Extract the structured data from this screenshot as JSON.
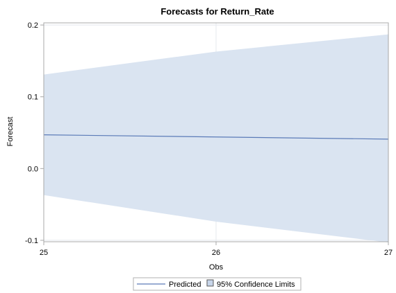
{
  "chart_data": {
    "type": "area",
    "title": "Forecasts for Return_Rate",
    "xlabel": "Obs",
    "ylabel": "Forecast",
    "x": [
      25,
      26,
      27
    ],
    "x_ticks": [
      "25",
      "26",
      "27"
    ],
    "y_ticks": [
      "0.2",
      "0.1",
      "0.0",
      "-0.1"
    ],
    "xlim": [
      25,
      27
    ],
    "ylim": [
      -0.102,
      0.203
    ],
    "grid": true,
    "legend_position": "bottom",
    "series": [
      {
        "name": "Predicted",
        "type": "line",
        "values": [
          0.047,
          0.044,
          0.041
        ]
      },
      {
        "name": "95% Confidence Limits",
        "type": "band",
        "lower": [
          -0.037,
          -0.074,
          -0.103
        ],
        "upper": [
          0.131,
          0.163,
          0.187
        ]
      }
    ],
    "colors": {
      "band_fill": "#dae4f1",
      "predicted_line": "#5a7ab7",
      "grid": "#e4e8ee",
      "axis": "#a8a8a8",
      "legend_swatch_fill": "#c8d6ea",
      "legend_swatch_border": "#5a5a5a"
    }
  }
}
